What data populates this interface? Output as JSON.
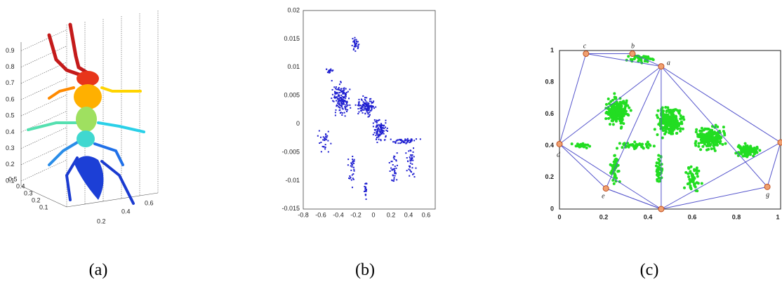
{
  "figure": {
    "panels": [
      {
        "label": "(a)",
        "z_ticks": [
          "0.1",
          "0.2",
          "0.3",
          "0.4",
          "0.5",
          "0.6",
          "0.7",
          "0.8",
          "0.9"
        ],
        "y_ticks": [
          "0.5",
          "0.4",
          "0.3",
          "0.2",
          "0.1"
        ],
        "x_ticks": [
          "0.2",
          "0.4",
          "0.6"
        ]
      },
      {
        "label": "(b)",
        "y_ticks": [
          "0.02",
          "0.015",
          "0.01",
          "0.005",
          "0",
          "-0.005",
          "-0.01",
          "-0.015"
        ],
        "x_ticks": [
          "-0.8",
          "-0.6",
          "-0.4",
          "-0.2",
          "0",
          "0.2",
          "0.4",
          "0.6"
        ]
      },
      {
        "label": "(c)",
        "y_ticks": [
          "1",
          "0.8",
          "0.6",
          "0.4",
          "0.2",
          "0"
        ],
        "x_ticks": [
          "0",
          "0.2",
          "0.4",
          "0.6",
          "0.8",
          "1"
        ],
        "vertex_labels": [
          "c",
          "b",
          "a",
          "d",
          "e",
          "g"
        ]
      }
    ]
  }
}
